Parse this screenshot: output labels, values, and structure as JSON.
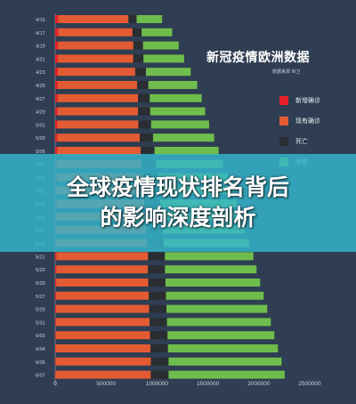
{
  "chart_data": {
    "type": "bar",
    "orientation": "horizontal",
    "stacked": true,
    "title": "新冠疫情欧洲数据",
    "subtitle": "数据来源 世卫",
    "categories": [
      "4/15",
      "4/17",
      "4/19",
      "4/21",
      "4/23",
      "4/25",
      "4/27",
      "4/29",
      "5/01",
      "5/03",
      "5/05",
      "5/07",
      "5/09",
      "5/11",
      "5/13",
      "5/15",
      "5/17",
      "5/19",
      "5/21",
      "5/23",
      "5/25",
      "5/27",
      "5/29",
      "5/31",
      "6/02",
      "6/04",
      "6/06",
      "6/07"
    ],
    "series": [
      {
        "name": "新增确诊",
        "color": "#e8202a",
        "values": [
          30000,
          29000,
          28000,
          27000,
          26000,
          25000,
          24000,
          23000,
          22000,
          21000,
          20000,
          19000,
          18000,
          17000,
          16000,
          15000,
          14000,
          13000,
          12000,
          11000,
          10000,
          9000,
          8000,
          7000,
          6000,
          5000,
          4500,
          4000
        ]
      },
      {
        "name": "现有确诊",
        "color": "#e35b33",
        "values": [
          690000,
          730000,
          740000,
          740000,
          760000,
          780000,
          790000,
          790000,
          795000,
          810000,
          820000,
          830000,
          840000,
          850000,
          860000,
          870000,
          880000,
          890000,
          900000,
          900000,
          905000,
          910000,
          915000,
          920000,
          925000,
          930000,
          935000,
          935000
        ]
      },
      {
        "name": "死亡",
        "color": "#2a2e33",
        "values": [
          80000,
          90000,
          95000,
          100000,
          105000,
          110000,
          115000,
          120000,
          125000,
          130000,
          135000,
          140000,
          145000,
          150000,
          155000,
          158000,
          160000,
          162000,
          165000,
          167000,
          168000,
          169000,
          170000,
          171000,
          172000,
          173000,
          174000,
          175000
        ]
      },
      {
        "name": "治愈",
        "color": "#6fbd4c",
        "values": [
          250000,
          300000,
          350000,
          400000,
          440000,
          480000,
          510000,
          540000,
          570000,
          600000,
          630000,
          660000,
          690000,
          720000,
          750000,
          780000,
          810000,
          840000,
          870000,
          900000,
          930000,
          960000,
          990000,
          1020000,
          1050000,
          1080000,
          1110000,
          1140000
        ]
      }
    ],
    "xlim": [
      0,
      2500000
    ],
    "xticks": [
      "0",
      "500000",
      "1000000",
      "1500000",
      "2000000",
      "2500000"
    ],
    "legend_position": "right",
    "grid": false
  },
  "banner": {
    "line1": "全球疫情现状排名背后",
    "line2": "的影响深度剖析"
  }
}
